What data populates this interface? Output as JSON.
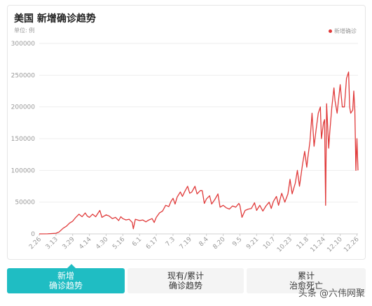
{
  "title": "美国 新增确诊趋势",
  "unit": "单位: 例",
  "legend": "新增确诊",
  "colors": {
    "line": "#e03a3a",
    "accent": "#1fbdc3"
  },
  "tabs": [
    {
      "label": "新增\n确诊趋势",
      "active": true
    },
    {
      "label": "现有/累计\n确诊趋势",
      "active": false
    },
    {
      "label": "累计\n治愈死亡",
      "active": false
    }
  ],
  "watermark": "头条 @六伟网聚",
  "chart_data": {
    "type": "line",
    "ylim": [
      0,
      300000
    ],
    "yticks": [
      0,
      50000,
      100000,
      150000,
      200000,
      250000,
      300000
    ],
    "xticks": [
      "2.26",
      "3.13",
      "3.29",
      "4.14",
      "4.30",
      "5.16",
      "6.1",
      "6.17",
      "7.3",
      "7.19",
      "8.4",
      "8.20",
      "9.5",
      "9.21",
      "10.7",
      "10.23",
      "11.8",
      "11.24",
      "12.10",
      "12.26"
    ],
    "series": [
      {
        "name": "新增确诊",
        "points": [
          [
            "2.26",
            0
          ],
          [
            "3.5",
            100
          ],
          [
            "3.13",
            1000
          ],
          [
            "3.16",
            3000
          ],
          [
            "3.20",
            9000
          ],
          [
            "3.23",
            12000
          ],
          [
            "3.26",
            17000
          ],
          [
            "3.29",
            20000
          ],
          [
            "4.1",
            26000
          ],
          [
            "4.4",
            31000
          ],
          [
            "4.7",
            27000
          ],
          [
            "4.10",
            33000
          ],
          [
            "4.12",
            28000
          ],
          [
            "4.14",
            26000
          ],
          [
            "4.17",
            31000
          ],
          [
            "4.20",
            27000
          ],
          [
            "4.24",
            37000
          ],
          [
            "4.26",
            26000
          ],
          [
            "4.30",
            30000
          ],
          [
            "5.3",
            28000
          ],
          [
            "5.6",
            24000
          ],
          [
            "5.9",
            26000
          ],
          [
            "5.12",
            21000
          ],
          [
            "5.14",
            27000
          ],
          [
            "5.16",
            24000
          ],
          [
            "5.19",
            22000
          ],
          [
            "5.22",
            23000
          ],
          [
            "5.25",
            18000
          ],
          [
            "5.26",
            8000
          ],
          [
            "5.28",
            23000
          ],
          [
            "6.1",
            21000
          ],
          [
            "6.4",
            22000
          ],
          [
            "6.7",
            19000
          ],
          [
            "6.10",
            22000
          ],
          [
            "6.13",
            24000
          ],
          [
            "6.15",
            18000
          ],
          [
            "6.17",
            26000
          ],
          [
            "6.20",
            33000
          ],
          [
            "6.23",
            36000
          ],
          [
            "6.26",
            45000
          ],
          [
            "6.29",
            43000
          ],
          [
            "7.1",
            51000
          ],
          [
            "7.3",
            56000
          ],
          [
            "7.5",
            47000
          ],
          [
            "7.7",
            58000
          ],
          [
            "7.10",
            66000
          ],
          [
            "7.12",
            59000
          ],
          [
            "7.14",
            66000
          ],
          [
            "7.17",
            75000
          ],
          [
            "7.19",
            64000
          ],
          [
            "7.21",
            66000
          ],
          [
            "7.24",
            75000
          ],
          [
            "7.26",
            63000
          ],
          [
            "7.29",
            68000
          ],
          [
            "7.31",
            68000
          ],
          [
            "8.2",
            48000
          ],
          [
            "8.4",
            55000
          ],
          [
            "8.7",
            60000
          ],
          [
            "8.9",
            47000
          ],
          [
            "8.12",
            54000
          ],
          [
            "8.15",
            63000
          ],
          [
            "8.17",
            42000
          ],
          [
            "8.20",
            45000
          ],
          [
            "8.23",
            41000
          ],
          [
            "8.26",
            39000
          ],
          [
            "8.29",
            44000
          ],
          [
            "9.1",
            42000
          ],
          [
            "9.4",
            48000
          ],
          [
            "9.5",
            45000
          ],
          [
            "9.7",
            26000
          ],
          [
            "9.10",
            37000
          ],
          [
            "9.13",
            39000
          ],
          [
            "9.16",
            40000
          ],
          [
            "9.19",
            49000
          ],
          [
            "9.21",
            37000
          ],
          [
            "9.24",
            45000
          ],
          [
            "9.27",
            36000
          ],
          [
            "9.30",
            44000
          ],
          [
            "10.3",
            50000
          ],
          [
            "10.5",
            40000
          ],
          [
            "10.7",
            51000
          ],
          [
            "10.10",
            59000
          ],
          [
            "10.12",
            45000
          ],
          [
            "10.15",
            64000
          ],
          [
            "10.18",
            50000
          ],
          [
            "10.21",
            63000
          ],
          [
            "10.23",
            86000
          ],
          [
            "10.25",
            63000
          ],
          [
            "10.28",
            80000
          ],
          [
            "10.30",
            100000
          ],
          [
            "11.1",
            75000
          ],
          [
            "11.4",
            110000
          ],
          [
            "11.6",
            130000
          ],
          [
            "11.8",
            105000
          ],
          [
            "11.9",
            120000
          ],
          [
            "11.11",
            145000
          ],
          [
            "11.13",
            190000
          ],
          [
            "11.15",
            138000
          ],
          [
            "11.17",
            165000
          ],
          [
            "11.19",
            190000
          ],
          [
            "11.21",
            200000
          ],
          [
            "11.22",
            150000
          ],
          [
            "11.24",
            175000
          ],
          [
            "11.25",
            180000
          ],
          [
            "11.26",
            45000
          ],
          [
            "11.27",
            205000
          ],
          [
            "11.29",
            135000
          ],
          [
            "11.30",
            160000
          ],
          [
            "12.2",
            200000
          ],
          [
            "12.4",
            230000
          ],
          [
            "12.5",
            210000
          ],
          [
            "12.7",
            190000
          ],
          [
            "12.9",
            220000
          ],
          [
            "12.10",
            235000
          ],
          [
            "12.12",
            200000
          ],
          [
            "12.14",
            200000
          ],
          [
            "12.16",
            245000
          ],
          [
            "12.18",
            255000
          ],
          [
            "12.19",
            200000
          ],
          [
            "12.20",
            190000
          ],
          [
            "12.22",
            195000
          ],
          [
            "12.23",
            225000
          ],
          [
            "12.24",
            195000
          ],
          [
            "12.25",
            100000
          ],
          [
            "12.26",
            150000
          ],
          [
            "12.27",
            100000
          ]
        ]
      }
    ]
  }
}
